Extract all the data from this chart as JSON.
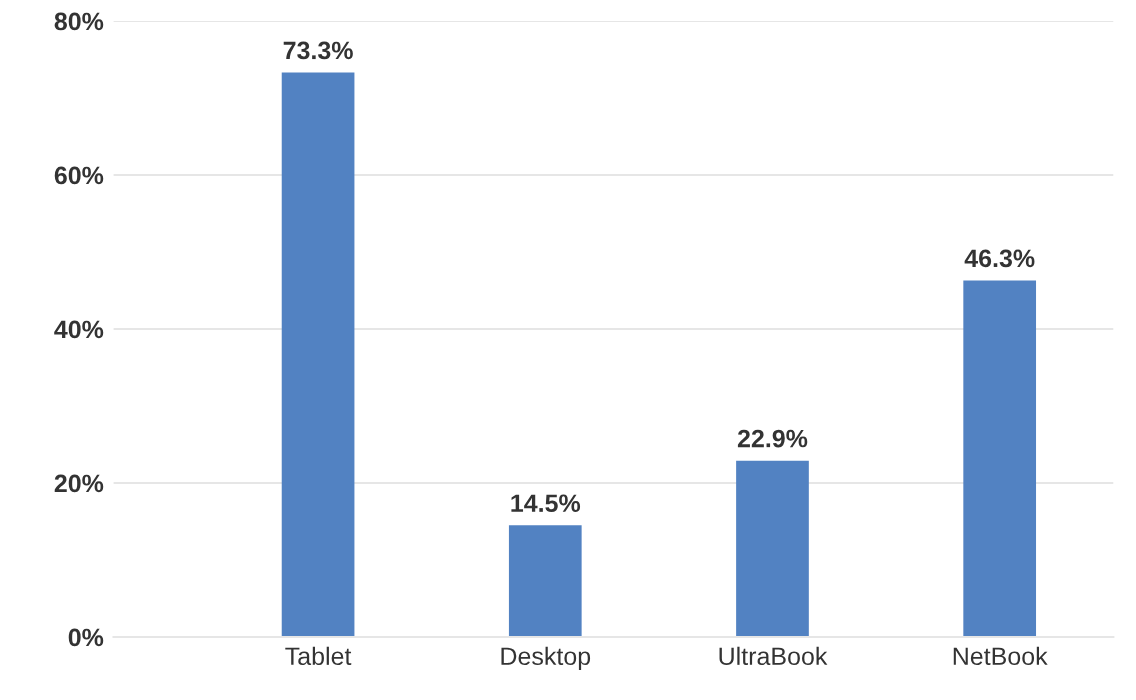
{
  "chart_data": {
    "type": "bar",
    "categories": [
      "Tablet",
      "Desktop",
      "UltraBook",
      "NetBook"
    ],
    "values": [
      73.3,
      14.5,
      22.9,
      46.3
    ],
    "value_labels": [
      "73.3%",
      "14.5%",
      "22.9%",
      "46.3%"
    ],
    "color": "#5282c2",
    "ylim": [
      0,
      80
    ],
    "yticks": [
      {
        "value": 0,
        "label": "0%"
      },
      {
        "value": 20,
        "label": "20%"
      },
      {
        "value": 40,
        "label": "40%"
      },
      {
        "value": 60,
        "label": "60%"
      },
      {
        "value": 80,
        "label": "80%"
      }
    ],
    "grid": "y",
    "legend": false
  }
}
